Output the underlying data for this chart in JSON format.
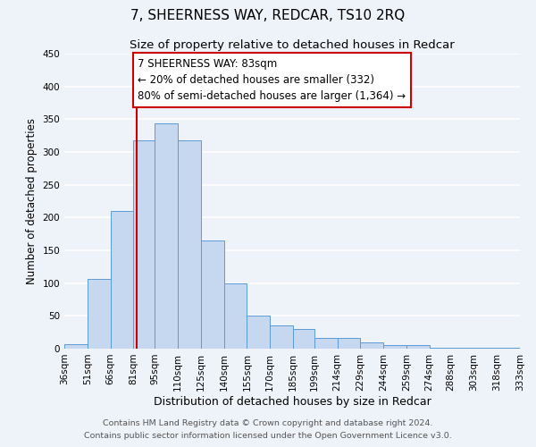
{
  "title": "7, SHEERNESS WAY, REDCAR, TS10 2RQ",
  "subtitle": "Size of property relative to detached houses in Redcar",
  "xlabel": "Distribution of detached houses by size in Redcar",
  "ylabel": "Number of detached properties",
  "bar_edges": [
    36,
    51,
    66,
    81,
    95,
    110,
    125,
    140,
    155,
    170,
    185,
    199,
    214,
    229,
    244,
    259,
    274,
    288,
    303,
    318,
    333
  ],
  "bar_heights": [
    7,
    107,
    210,
    318,
    343,
    318,
    165,
    99,
    50,
    36,
    30,
    16,
    16,
    9,
    5,
    5,
    2,
    2,
    2,
    2
  ],
  "bar_color": "#c5d8f0",
  "bar_edge_color": "#5b9bd5",
  "vline_x": 83,
  "vline_color": "#cc0000",
  "ylim": [
    0,
    450
  ],
  "xlim": [
    36,
    333
  ],
  "annotation_text": "7 SHEERNESS WAY: 83sqm\n← 20% of detached houses are smaller (332)\n80% of semi-detached houses are larger (1,364) →",
  "annotation_box_color": "#ffffff",
  "annotation_box_edge_color": "#cc0000",
  "tick_labels": [
    "36sqm",
    "51sqm",
    "66sqm",
    "81sqm",
    "95sqm",
    "110sqm",
    "125sqm",
    "140sqm",
    "155sqm",
    "170sqm",
    "185sqm",
    "199sqm",
    "214sqm",
    "229sqm",
    "244sqm",
    "259sqm",
    "274sqm",
    "288sqm",
    "303sqm",
    "318sqm",
    "333sqm"
  ],
  "footer_line1": "Contains HM Land Registry data © Crown copyright and database right 2024.",
  "footer_line2": "Contains public sector information licensed under the Open Government Licence v3.0.",
  "background_color": "#eef2f9",
  "grid_color": "#ffffff",
  "title_fontsize": 11,
  "subtitle_fontsize": 9.5,
  "xlabel_fontsize": 9,
  "ylabel_fontsize": 8.5,
  "tick_fontsize": 7.5,
  "footer_fontsize": 6.8,
  "annotation_fontsize": 8.5
}
